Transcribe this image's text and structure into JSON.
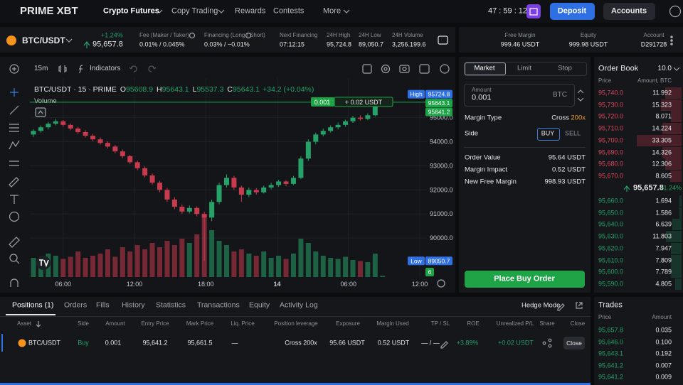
{
  "nav": {
    "logo": "PRIME XBT",
    "items": [
      "Crypto Futures",
      "Copy Trading",
      "Rewards",
      "Contests",
      "More"
    ],
    "timer": "47 : 59 : 12",
    "deposit": "Deposit",
    "accounts": "Accounts"
  },
  "ticker": {
    "symbol": "BTC/USDT",
    "change": "+1.24%",
    "price": "95,657.8",
    "stats": [
      {
        "label": "Fee (Maker / Taker)",
        "value": "0.01% / 0.045%"
      },
      {
        "label": "Financing (Long / Short)",
        "value": "0.03% / −0.01%"
      },
      {
        "label": "Next Financing",
        "value": "07:12:15"
      },
      {
        "label": "24H High",
        "value": "95,724.8"
      },
      {
        "label": "24H Low",
        "value": "89,050.7"
      },
      {
        "label": "24H Volume",
        "value": "3,256.199.6"
      }
    ]
  },
  "account": [
    {
      "label": "Free Margin",
      "value": "999.46 USDT"
    },
    {
      "label": "Equity",
      "value": "999.98 USDT"
    },
    {
      "label": "Account",
      "value": "D291728"
    }
  ],
  "chart_toolbar": {
    "interval": "15m",
    "indicators": "Indicators"
  },
  "chart_data": {
    "type": "candlestick",
    "legend": {
      "symbol": "BTC/USDT · 15 · PRIME",
      "o": "O",
      "h": "H",
      "l": "L",
      "c": "C",
      "change": "+34.2 (+0.04%)"
    },
    "volume_label": "Volume",
    "x": [
      3.5,
      4.125,
      4.75,
      5.375,
      6,
      6.625,
      7.25,
      7.875,
      8.5,
      9.125,
      9.75,
      10.375,
      11,
      11.625,
      12.25,
      12.875,
      13.5,
      14.125,
      14.75,
      15.375,
      16,
      16.625,
      17.25,
      17.875,
      18.5,
      19.125,
      19.75,
      20.375,
      21,
      21.625,
      22.25,
      22.875,
      23.5,
      24.125,
      24.75,
      25.375,
      26,
      26.625,
      27.25,
      27.875,
      28.5,
      29.125,
      29.75,
      30.375,
      31,
      31.625,
      32.25,
      32.875
    ],
    "open": [
      94300,
      94450,
      94600,
      94750,
      94850,
      94700,
      94550,
      94400,
      94250,
      94100,
      93950,
      93800,
      93600,
      93400,
      93150,
      92900,
      92600,
      92300,
      92000,
      91600,
      91300,
      91100,
      91250,
      91000,
      90850,
      91500,
      92200,
      92500,
      92100,
      91800,
      92000,
      91900,
      92100,
      92200,
      92350,
      92250,
      92500,
      93300,
      94000,
      94300,
      94450,
      94600,
      94700,
      94850,
      95000,
      94950,
      95100,
      95608.9
    ],
    "high": [
      94520,
      94680,
      94820,
      94950,
      94900,
      94760,
      94620,
      94480,
      94330,
      94180,
      94020,
      93870,
      93680,
      93460,
      93220,
      92980,
      92680,
      92380,
      92080,
      91700,
      91400,
      91350,
      91320,
      91100,
      91600,
      92300,
      92650,
      92580,
      92180,
      92100,
      92080,
      92180,
      92300,
      92420,
      92400,
      92580,
      93400,
      94100,
      94380,
      94550,
      94680,
      94800,
      94920,
      95080,
      95100,
      95180,
      95724.8,
      95643.1
    ],
    "low": [
      94200,
      94380,
      94520,
      94680,
      94620,
      94480,
      94330,
      94180,
      94020,
      93880,
      93720,
      93520,
      93320,
      93080,
      92820,
      92520,
      92220,
      91900,
      91500,
      91200,
      91000,
      91020,
      90900,
      89050.7,
      90700,
      91400,
      92100,
      92000,
      91500,
      91700,
      91800,
      91850,
      92020,
      92120,
      92150,
      92200,
      92450,
      93200,
      93900,
      94220,
      94380,
      94520,
      94620,
      94780,
      94880,
      94900,
      95050,
      95537.3
    ],
    "close": [
      94450,
      94600,
      94750,
      94850,
      94700,
      94550,
      94400,
      94250,
      94100,
      93950,
      93800,
      93600,
      93400,
      93150,
      92900,
      92600,
      92300,
      92000,
      91600,
      91300,
      91100,
      91250,
      91000,
      90850,
      91500,
      92200,
      92500,
      92100,
      91800,
      92000,
      91900,
      92100,
      92200,
      92350,
      92250,
      92500,
      93300,
      94000,
      94300,
      94450,
      94600,
      94700,
      94850,
      95000,
      94950,
      95100,
      95608.9,
      95643.1
    ],
    "volume": [
      90,
      80,
      110,
      100,
      85,
      95,
      120,
      90,
      100,
      110,
      130,
      95,
      140,
      120,
      150,
      130,
      160,
      140,
      170,
      150,
      180,
      160,
      200,
      290,
      220,
      170,
      150,
      120,
      130,
      110,
      100,
      120,
      90,
      100,
      85,
      110,
      180,
      160,
      120,
      100,
      90,
      85,
      95,
      80,
      75,
      70,
      110,
      6
    ],
    "volume_lim": [
      0,
      300
    ],
    "xlim": [
      3.2,
      36.6
    ],
    "xticks": [
      {
        "value": 6,
        "label": "06:00"
      },
      {
        "value": 12,
        "label": "12:00"
      },
      {
        "value": 18,
        "label": "18:00"
      },
      {
        "value": 24,
        "label": "14"
      },
      {
        "value": 30,
        "label": "06:00"
      },
      {
        "value": 36,
        "label": "12:00"
      }
    ],
    "ylim": [
      88380,
      96200
    ],
    "yticks": [
      {
        "value": 90000,
        "label": "90000.0"
      },
      {
        "value": 91000,
        "label": "91000.0"
      },
      {
        "value": 92000,
        "label": "92000.0"
      },
      {
        "value": 93000,
        "label": "93000.0"
      },
      {
        "value": 94000,
        "label": "94000.0"
      },
      {
        "value": 95000,
        "label": "95000.0"
      }
    ],
    "grid": true,
    "up_color": "#26a269",
    "down_color": "#c93a4f",
    "high_tag": "High",
    "low_tag": "Low",
    "position_line": {
      "price": 95641.2,
      "qty": "0.001",
      "pnl": "+ 0.02 USDT"
    }
  },
  "order": {
    "tabs": [
      "Market",
      "Limit",
      "Stop"
    ],
    "amount_label": "Amount",
    "amount": "0.001",
    "amount_unit": "BTC",
    "margin_label": "Margin Type",
    "margin_value": "Cross",
    "margin_lev": "200x",
    "side_label": "Side",
    "buy": "BUY",
    "sell": "SELL",
    "summary": [
      {
        "label": "Order Value",
        "value": "95.64 USDT"
      },
      {
        "label": "Margin Impact",
        "value": "0.52 USDT"
      },
      {
        "label": "New Free Margin",
        "value": "998.93 USDT"
      }
    ],
    "button": "Place Buy Order"
  },
  "order_book": {
    "title": "Order Book",
    "tick": "10.0",
    "headers": [
      "Price",
      "Amount, BTC"
    ],
    "asks": [
      {
        "price": "95,740.0",
        "amount": 11.992
      },
      {
        "price": "95,730.0",
        "amount": 15.323
      },
      {
        "price": "95,720.0",
        "amount": 8.071
      },
      {
        "price": "95,710.0",
        "amount": 14.224
      },
      {
        "price": "95,700.0",
        "amount": 33.305
      },
      {
        "price": "95,690.0",
        "amount": 14.326
      },
      {
        "price": "95,680.0",
        "amount": 12.306
      },
      {
        "price": "95,670.0",
        "amount": 8.605
      }
    ],
    "mid": "95,657.8",
    "mid_change": "+1.24%",
    "bids": [
      {
        "price": "95,660.0",
        "amount": 1.694
      },
      {
        "price": "95,650.0",
        "amount": 1.586
      },
      {
        "price": "95,640.0",
        "amount": 6.639
      },
      {
        "price": "95,630.0",
        "amount": 11.803
      },
      {
        "price": "95,620.0",
        "amount": 7.947
      },
      {
        "price": "95,610.0",
        "amount": 7.809
      },
      {
        "price": "95,600.0",
        "amount": 7.789
      },
      {
        "price": "95,590.0",
        "amount": 4.805
      }
    ]
  },
  "trades": {
    "title": "Trades",
    "headers": [
      "Price",
      "Amount"
    ],
    "rows": [
      [
        "95,657.8",
        "0.035"
      ],
      [
        "95,646.0",
        "0.100"
      ],
      [
        "95,643.1",
        "0.192"
      ],
      [
        "95,641.2",
        "0.007"
      ],
      [
        "95,641.2",
        "0.009"
      ]
    ]
  },
  "positions": {
    "tabs": [
      "Positions (1)",
      "Orders",
      "Fills",
      "History",
      "Statistics",
      "Transactions",
      "Equity",
      "Activity Log"
    ],
    "hedge": "Hedge Mode",
    "headers": [
      "Asset",
      "Side",
      "Amount",
      "Entry Price",
      "Mark Price",
      "Liq. Price",
      "Position leverage",
      "Exposure",
      "Margin Used",
      "TP / SL",
      "ROE",
      "Unrealized P/L",
      "Share",
      "Close"
    ],
    "rows": [
      {
        "cells": [
          "BTC/USDT",
          "Buy",
          "0.001",
          "95,641.2",
          "95,661.5",
          "—",
          "Cross 200x",
          "95.66 USDT",
          "0.52 USDT",
          "— / —",
          "+3.89%",
          "+0.02 USDT"
        ],
        "close": "Close"
      }
    ]
  }
}
